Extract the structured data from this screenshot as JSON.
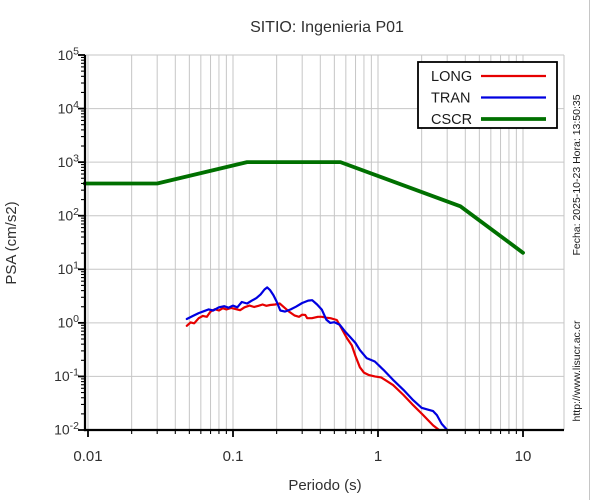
{
  "page_title": "SITIO: Ingenieria P01",
  "side_texts": {
    "datetime": "Fecha: 2025-10-23  Hora: 13:50:35",
    "url": "http://www.lisucr.ac.cr"
  },
  "chart_data": {
    "type": "line",
    "title": "SITIO: Ingenieria P01",
    "xlabel": "Periodo (s)",
    "ylabel": "PSA (cm/s2)",
    "x_scale": "log",
    "y_scale": "log",
    "xlim": [
      0.0095,
      19
    ],
    "ylim": [
      0.01,
      100000
    ],
    "x_major_ticks": [
      0.01,
      0.1,
      1,
      10
    ],
    "x_tick_labels": [
      "0.01",
      "0.1",
      "1",
      "10"
    ],
    "y_ticks": [
      {
        "base": "10",
        "exp": "5",
        "value": 100000
      },
      {
        "base": "10",
        "exp": "4",
        "value": 10000
      },
      {
        "base": "10",
        "exp": "3",
        "value": 1000
      },
      {
        "base": "10",
        "exp": "2",
        "value": 100
      },
      {
        "base": "10",
        "exp": "1",
        "value": 10
      },
      {
        "base": "10",
        "exp": "0",
        "value": 1
      },
      {
        "base": "10",
        "exp": "-1",
        "value": 0.1
      },
      {
        "base": "10",
        "exp": "-2",
        "value": 0.01
      }
    ],
    "grid": {
      "show": true,
      "vertical": "major+minor",
      "horizontal": "major",
      "color": "#c6c6c6"
    },
    "legend": {
      "position": "top-right",
      "entries": [
        "LONG",
        "TRAN",
        "CSCR"
      ]
    },
    "series": [
      {
        "name": "LONG",
        "color": "#e60000",
        "stroke_width": 2.2,
        "points": [
          [
            0.048,
            0.88
          ],
          [
            0.051,
            1.02
          ],
          [
            0.054,
            0.98
          ],
          [
            0.058,
            1.22
          ],
          [
            0.062,
            1.35
          ],
          [
            0.066,
            1.3
          ],
          [
            0.07,
            1.62
          ],
          [
            0.075,
            1.8
          ],
          [
            0.08,
            1.7
          ],
          [
            0.085,
            1.88
          ],
          [
            0.09,
            1.78
          ],
          [
            0.097,
            1.9
          ],
          [
            0.105,
            1.8
          ],
          [
            0.112,
            1.72
          ],
          [
            0.12,
            1.95
          ],
          [
            0.13,
            2.1
          ],
          [
            0.14,
            1.98
          ],
          [
            0.15,
            2.08
          ],
          [
            0.16,
            2.2
          ],
          [
            0.17,
            2.08
          ],
          [
            0.18,
            2.15
          ],
          [
            0.195,
            2.2
          ],
          [
            0.21,
            2.3
          ],
          [
            0.225,
            1.95
          ],
          [
            0.245,
            1.6
          ],
          [
            0.265,
            1.38
          ],
          [
            0.285,
            1.3
          ],
          [
            0.3,
            1.42
          ],
          [
            0.315,
            1.4
          ],
          [
            0.325,
            1.22
          ],
          [
            0.35,
            1.22
          ],
          [
            0.385,
            1.3
          ],
          [
            0.41,
            1.3
          ],
          [
            0.44,
            1.25
          ],
          [
            0.47,
            1.22
          ],
          [
            0.52,
            1.13
          ],
          [
            0.56,
            0.79
          ],
          [
            0.61,
            0.52
          ],
          [
            0.66,
            0.38
          ],
          [
            0.7,
            0.24
          ],
          [
            0.75,
            0.148
          ],
          [
            0.8,
            0.118
          ],
          [
            0.86,
            0.107
          ],
          [
            0.95,
            0.1
          ],
          [
            1.05,
            0.096
          ],
          [
            1.12,
            0.086
          ],
          [
            1.27,
            0.069
          ],
          [
            1.5,
            0.045
          ],
          [
            1.75,
            0.029
          ],
          [
            2.05,
            0.019
          ],
          [
            2.4,
            0.0122
          ],
          [
            2.64,
            0.0097
          ]
        ]
      },
      {
        "name": "TRAN",
        "color": "#0000e0",
        "stroke_width": 2.2,
        "points": [
          [
            0.048,
            1.18
          ],
          [
            0.053,
            1.35
          ],
          [
            0.058,
            1.52
          ],
          [
            0.063,
            1.65
          ],
          [
            0.068,
            1.78
          ],
          [
            0.073,
            1.7
          ],
          [
            0.08,
            1.95
          ],
          [
            0.087,
            2.05
          ],
          [
            0.093,
            1.92
          ],
          [
            0.1,
            2.1
          ],
          [
            0.107,
            1.95
          ],
          [
            0.115,
            2.45
          ],
          [
            0.125,
            2.3
          ],
          [
            0.135,
            2.6
          ],
          [
            0.145,
            2.9
          ],
          [
            0.155,
            3.4
          ],
          [
            0.165,
            4.2
          ],
          [
            0.172,
            4.6
          ],
          [
            0.18,
            4.1
          ],
          [
            0.19,
            3.3
          ],
          [
            0.2,
            2.5
          ],
          [
            0.212,
            1.7
          ],
          [
            0.228,
            1.62
          ],
          [
            0.25,
            1.78
          ],
          [
            0.272,
            2.0
          ],
          [
            0.3,
            2.35
          ],
          [
            0.33,
            2.6
          ],
          [
            0.352,
            2.65
          ],
          [
            0.38,
            2.2
          ],
          [
            0.41,
            1.75
          ],
          [
            0.44,
            1.15
          ],
          [
            0.468,
            1.0
          ],
          [
            0.5,
            1.03
          ],
          [
            0.545,
            0.92
          ],
          [
            0.59,
            0.7
          ],
          [
            0.64,
            0.55
          ],
          [
            0.7,
            0.42
          ],
          [
            0.75,
            0.31
          ],
          [
            0.835,
            0.22
          ],
          [
            0.95,
            0.19
          ],
          [
            1.09,
            0.133
          ],
          [
            1.27,
            0.086
          ],
          [
            1.5,
            0.056
          ],
          [
            1.75,
            0.036
          ],
          [
            2.0,
            0.026
          ],
          [
            2.2,
            0.024
          ],
          [
            2.4,
            0.0225
          ],
          [
            2.55,
            0.019
          ],
          [
            2.75,
            0.013
          ],
          [
            3.0,
            0.01
          ]
        ]
      },
      {
        "name": "CSCR",
        "color": "#007000",
        "stroke_width": 3.8,
        "points": [
          [
            0.0095,
            400
          ],
          [
            0.03,
            400
          ],
          [
            0.125,
            1000
          ],
          [
            0.55,
            1000
          ],
          [
            3.7,
            150
          ],
          [
            10,
            20.3
          ]
        ]
      }
    ]
  }
}
